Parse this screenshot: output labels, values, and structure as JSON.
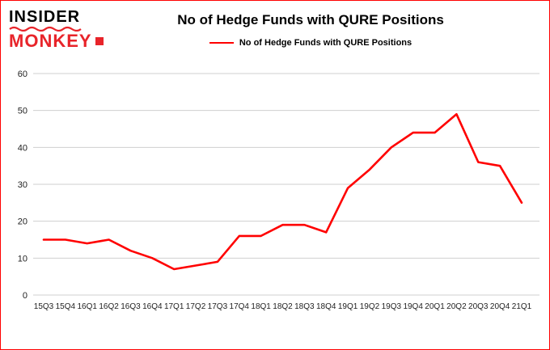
{
  "brand": {
    "line1": "INSIDER",
    "line2": "MONKEY",
    "red": "#e8242a"
  },
  "title": "No of Hedge Funds with QURE Positions",
  "legend": {
    "label": "No of Hedge Funds with QURE Positions",
    "color": "#ff0000"
  },
  "colors": {
    "frame_border": "#ff0000",
    "gridline": "#cfcfcf",
    "axis_text": "#222222",
    "line": "#ff0000"
  },
  "chart_data": {
    "type": "line",
    "title": "No of Hedge Funds with QURE Positions",
    "categories": [
      "15Q3",
      "15Q4",
      "16Q1",
      "16Q2",
      "16Q3",
      "16Q4",
      "17Q1",
      "17Q2",
      "17Q3",
      "17Q4",
      "18Q1",
      "18Q2",
      "18Q3",
      "18Q4",
      "19Q1",
      "19Q2",
      "19Q3",
      "19Q4",
      "20Q1",
      "20Q2",
      "20Q3",
      "20Q4",
      "21Q1"
    ],
    "values": [
      15,
      15,
      14,
      15,
      12,
      10,
      7,
      8,
      9,
      16,
      16,
      19,
      19,
      17,
      29,
      34,
      40,
      44,
      44,
      49,
      36,
      35,
      25
    ],
    "series_name": "No of Hedge Funds with QURE Positions",
    "xlabel": "",
    "ylabel": "",
    "ylim": [
      0,
      60
    ],
    "yticks": [
      0,
      10,
      20,
      30,
      40,
      50,
      60
    ],
    "grid": true,
    "line_color": "#ff0000",
    "legend_position": "top"
  }
}
